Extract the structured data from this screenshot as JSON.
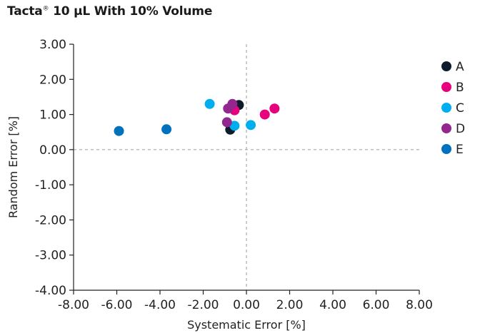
{
  "chart_data": {
    "type": "scatter",
    "title_main": "Tacta",
    "title_sup": "®",
    "title_rest": " 10 µL With 10% Volume",
    "xlabel": "Systematic Error [%]",
    "ylabel": "Random Error [%]",
    "xlim": [
      -8,
      8
    ],
    "ylim": [
      -4,
      3
    ],
    "x_ticks": [
      -8,
      -6,
      -4,
      -2,
      0,
      2,
      4,
      6,
      8
    ],
    "x_tick_labels": [
      "-8.00",
      "-6.00",
      "-4.00",
      "-2.00",
      "0.00",
      "2.00",
      "4.00",
      "6.00",
      "8.00"
    ],
    "y_ticks": [
      3,
      2,
      1,
      0,
      -1,
      -2,
      -3,
      -4
    ],
    "y_tick_labels": [
      "3.00",
      "2.00",
      "1.00",
      "0.00",
      "-1.00",
      "-2.00",
      "-3.00",
      "-4.00"
    ],
    "reference_lines": {
      "x": 0,
      "y": 0
    },
    "legend_position": "right",
    "series": [
      {
        "name": "A",
        "color": "#0d1b2a",
        "points": [
          [
            -0.35,
            1.27
          ],
          [
            -0.75,
            0.57
          ]
        ]
      },
      {
        "name": "B",
        "color": "#e6007e",
        "points": [
          [
            1.3,
            1.17
          ],
          [
            0.85,
            1.0
          ],
          [
            -0.55,
            1.12
          ]
        ]
      },
      {
        "name": "C",
        "color": "#00aeef",
        "points": [
          [
            -1.7,
            1.3
          ],
          [
            0.2,
            0.7
          ],
          [
            -0.55,
            0.68
          ]
        ]
      },
      {
        "name": "D",
        "color": "#93278f",
        "points": [
          [
            -0.65,
            1.3
          ],
          [
            -0.85,
            1.17
          ],
          [
            -0.9,
            0.78
          ]
        ]
      },
      {
        "name": "E",
        "color": "#0071bc",
        "points": [
          [
            -5.9,
            0.53
          ],
          [
            -3.7,
            0.58
          ]
        ]
      }
    ]
  }
}
